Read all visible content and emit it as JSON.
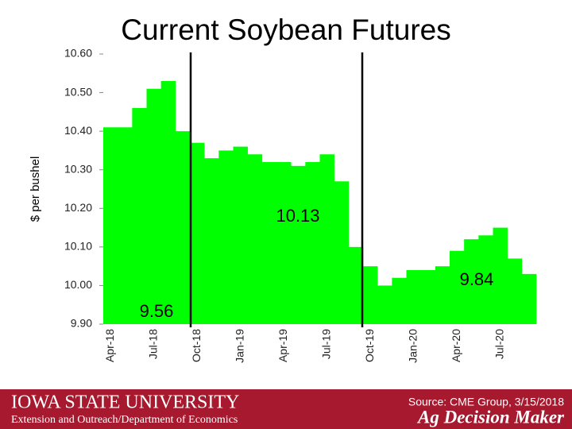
{
  "chart_data": {
    "type": "bar",
    "title": "Current Soybean Futures",
    "y_label": "$ per bushel",
    "categories": [
      "Apr-18",
      null,
      null,
      "Jul-18",
      null,
      null,
      "Oct-18",
      null,
      null,
      "Jan-19",
      null,
      null,
      "Apr-19",
      null,
      null,
      "Jul-19",
      null,
      null,
      "Oct-19",
      null,
      null,
      "Jan-20",
      null,
      null,
      "Apr-20",
      null,
      null,
      "Jul-20",
      null,
      null
    ],
    "values": [
      10.41,
      10.41,
      10.46,
      10.51,
      10.53,
      10.4,
      10.37,
      10.33,
      10.35,
      10.36,
      10.34,
      10.32,
      10.32,
      10.31,
      10.32,
      10.34,
      10.27,
      10.1,
      10.05,
      10.0,
      10.02,
      10.04,
      10.04,
      10.05,
      10.09,
      10.12,
      10.13,
      10.15,
      10.07,
      10.03
    ],
    "color": "#00ff00",
    "ylim": [
      9.9,
      10.6
    ],
    "yticks": [
      {
        "value": 9.9,
        "label": "9.90"
      },
      {
        "value": 10.0,
        "label": "10.00"
      },
      {
        "value": 10.1,
        "label": "10.10"
      },
      {
        "value": 10.2,
        "label": "10.20"
      },
      {
        "value": 10.3,
        "label": "10.30"
      },
      {
        "value": 10.4,
        "label": "10.40"
      },
      {
        "value": 10.5,
        "label": "10.50"
      },
      {
        "value": 10.6,
        "label": "10.60"
      }
    ],
    "grid": false,
    "annotations": [
      "10.13",
      "9.84",
      "9.56"
    ]
  },
  "footer": {
    "university": "Iowa State University",
    "department": "Extension and Outreach/Department of Economics",
    "source": "Source: CME Group, 3/15/2018",
    "brand": "Ag Decision Maker"
  }
}
